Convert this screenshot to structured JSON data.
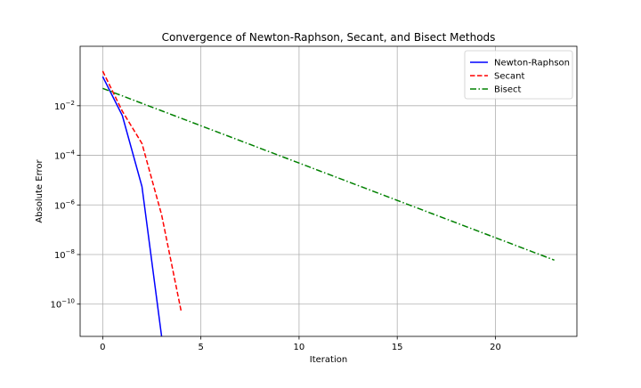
{
  "chart_data": {
    "type": "line",
    "title": "Convergence of Newton-Raphson, Secant, and Bisect Methods",
    "xlabel": "Iteration",
    "ylabel": "Absolute Error",
    "xlim": [
      -1.15,
      24.15
    ],
    "ylim": [
      5e-12,
      2.5
    ],
    "yscale": "log",
    "grid": true,
    "legend_position": "top-right",
    "x_ticks": [
      {
        "value": 0,
        "label": "0"
      },
      {
        "value": 5,
        "label": "5"
      },
      {
        "value": 10,
        "label": "10"
      },
      {
        "value": 15,
        "label": "15"
      },
      {
        "value": 20,
        "label": "20"
      }
    ],
    "y_ticks": [
      {
        "value": 0.01,
        "base": "10",
        "exp": "−2"
      },
      {
        "value": 0.0001,
        "base": "10",
        "exp": "−4"
      },
      {
        "value": 1e-06,
        "base": "10",
        "exp": "−6"
      },
      {
        "value": 1e-08,
        "base": "10",
        "exp": "−8"
      },
      {
        "value": 1e-10,
        "base": "10",
        "exp": "−10"
      }
    ],
    "series": [
      {
        "name": "Newton-Raphson",
        "color": "#0000ff",
        "dash": "solid",
        "x": [
          0,
          1,
          2,
          3
        ],
        "y": [
          0.15,
          0.004,
          5.5e-06,
          5e-12
        ]
      },
      {
        "name": "Secant",
        "color": "#ff0000",
        "dash": "dashed",
        "x": [
          0,
          1,
          2,
          3,
          4
        ],
        "y": [
          0.25,
          0.006,
          0.0003,
          4e-07,
          5e-11
        ]
      },
      {
        "name": "Bisect",
        "color": "#008000",
        "dash": "dashdot",
        "x": [
          0,
          1,
          2,
          3,
          4,
          5,
          6,
          7,
          8,
          9,
          10,
          11,
          12,
          13,
          14,
          15,
          16,
          17,
          18,
          19,
          20,
          21,
          22,
          23
        ],
        "y": [
          0.05,
          0.025,
          0.0125,
          0.00625,
          0.003125,
          0.0015625,
          0.00078125,
          0.000390625,
          0.0001953125,
          9.765625e-05,
          4.8828125e-05,
          2.44140625e-05,
          1.220703125e-05,
          6.103515625e-06,
          3.0517578125e-06,
          1.52587890625e-06,
          7.62939453125e-07,
          3.814697265625e-07,
          1.9073486328125e-07,
          9.5367431640625e-08,
          4.76837158203125e-08,
          2.384185791015625e-08,
          1.1920928955078126e-08,
          5.960464477539063e-09
        ]
      }
    ]
  }
}
